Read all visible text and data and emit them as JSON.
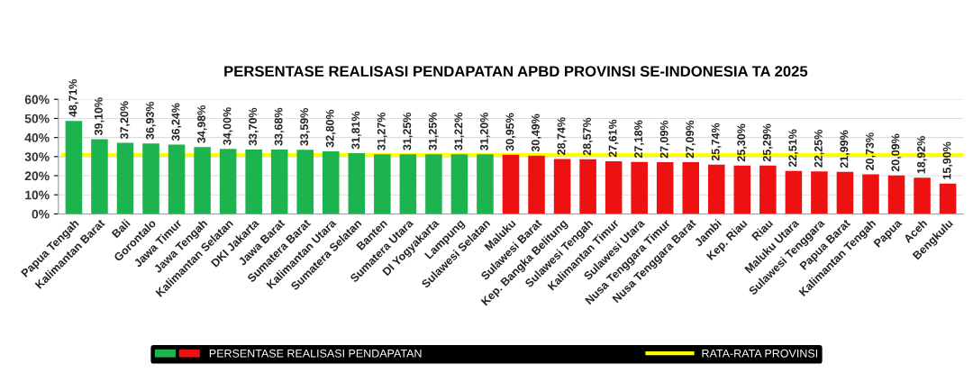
{
  "chart_data": {
    "type": "bar",
    "title": "PERSENTASE REALISASI PENDAPATAN APBD PROVINSI SE-INDONESIA TA 2025",
    "categories": [
      "Papua Tengah",
      "Kalimantan Barat",
      "Bali",
      "Gorontalo",
      "Jawa Timur",
      "Jawa Tengah",
      "Kalimantan Selatan",
      "DKI Jakarta",
      "Jawa Barat",
      "Sumatera Barat",
      "Kalimantan Utara",
      "Sumatera Selatan",
      "Banten",
      "Sumatera Utara",
      "DI Yogyakarta",
      "Lampung",
      "Sulawesi Selatan",
      "Maluku",
      "Sulawesi Barat",
      "Kep. Bangka Belitung",
      "Sulawesi Tengah",
      "Kalimantan Timur",
      "Sulawesi Utara",
      "Nusa Tenggara Timur",
      "Nusa Tenggara Barat",
      "Jambi",
      "Kep. Riau",
      "Riau",
      "Maluku Utara",
      "Sulawesi Tenggara",
      "Papua Barat",
      "Kalimantan Tengah",
      "Papua",
      "Aceh",
      "Bengkulu"
    ],
    "series": [
      {
        "name": "PERSENTASE REALISASI PENDAPATAN",
        "values": [
          48.71,
          39.1,
          37.2,
          36.93,
          36.24,
          34.98,
          34.0,
          33.7,
          33.68,
          33.59,
          32.8,
          31.81,
          31.27,
          31.25,
          31.25,
          31.22,
          31.2,
          30.95,
          30.49,
          28.74,
          28.57,
          27.61,
          27.18,
          27.09,
          27.09,
          25.74,
          25.3,
          25.29,
          22.51,
          22.25,
          21.99,
          20.73,
          20.09,
          18.92,
          15.9
        ],
        "value_labels": [
          "48,71%",
          "39,10%",
          "37,20%",
          "36,93%",
          "36,24%",
          "34,98%",
          "34,00%",
          "33,70%",
          "33,68%",
          "33,59%",
          "32,80%",
          "31,81%",
          "31,27%",
          "31,25%",
          "31,25%",
          "31,22%",
          "31,20%",
          "30,95%",
          "30,49%",
          "28,74%",
          "28,57%",
          "27,61%",
          "27,18%",
          "27,09%",
          "27,09%",
          "25,74%",
          "25,30%",
          "25,29%",
          "22,51%",
          "22,25%",
          "21,99%",
          "20,73%",
          "20,09%",
          "18,92%",
          "15,90%"
        ],
        "colors": [
          "#1db34f",
          "#1db34f",
          "#1db34f",
          "#1db34f",
          "#1db34f",
          "#1db34f",
          "#1db34f",
          "#1db34f",
          "#1db34f",
          "#1db34f",
          "#1db34f",
          "#1db34f",
          "#1db34f",
          "#1db34f",
          "#1db34f",
          "#1db34f",
          "#1db34f",
          "#ee1111",
          "#ee1111",
          "#ee1111",
          "#ee1111",
          "#ee1111",
          "#ee1111",
          "#ee1111",
          "#ee1111",
          "#ee1111",
          "#ee1111",
          "#ee1111",
          "#ee1111",
          "#ee1111",
          "#ee1111",
          "#ee1111",
          "#ee1111",
          "#ee1111",
          "#ee1111"
        ]
      }
    ],
    "ylim": [
      0,
      60
    ],
    "yticks": [
      {
        "value": 0,
        "label": "0%"
      },
      {
        "value": 10,
        "label": "10%"
      },
      {
        "value": 20,
        "label": "20%"
      },
      {
        "value": 30,
        "label": "30%"
      },
      {
        "value": 40,
        "label": "40%"
      },
      {
        "value": 50,
        "label": "50%"
      },
      {
        "value": 60,
        "label": "60%"
      }
    ],
    "ref_lines": [
      {
        "axis": "y",
        "value": 30.8,
        "label": "RATA-RATA PROVINSI",
        "color": "#ffff00"
      }
    ],
    "grid": "y",
    "legend": "bottom"
  }
}
